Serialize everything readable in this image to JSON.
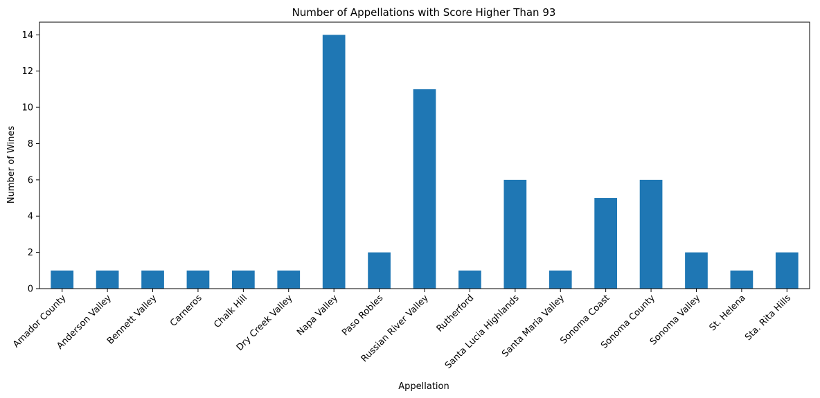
{
  "chart_data": {
    "type": "bar",
    "title": "Number of Appellations with Score Higher Than 93",
    "xlabel": "Appellation",
    "ylabel": "Number of Wines",
    "categories": [
      "Amador County",
      "Anderson Valley",
      "Bennett Valley",
      "Carneros",
      "Chalk Hill",
      "Dry Creek Valley",
      "Napa Valley",
      "Paso Robles",
      "Russian River Valley",
      "Rutherford",
      "Santa Lucia Highlands",
      "Santa Maria Valley",
      "Sonoma Coast",
      "Sonoma County",
      "Sonoma Valley",
      "St. Helena",
      "Sta. Rita Hills"
    ],
    "values": [
      1,
      1,
      1,
      1,
      1,
      1,
      14,
      2,
      11,
      1,
      6,
      1,
      5,
      6,
      2,
      1,
      2
    ],
    "ylim": [
      0,
      14.7
    ],
    "yticks": [
      0,
      2,
      4,
      6,
      8,
      10,
      12,
      14
    ],
    "bar_color": "#1f77b4",
    "grid": false,
    "legend": "none"
  }
}
